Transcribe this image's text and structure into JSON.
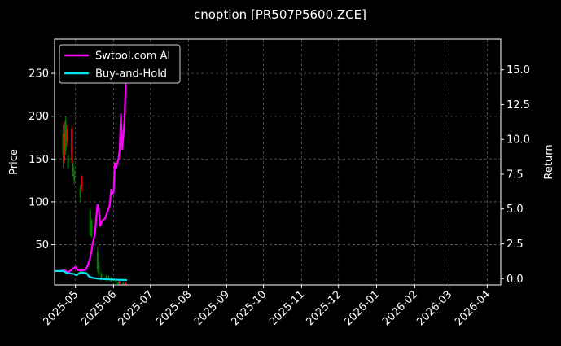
{
  "chart_data": {
    "type": "line",
    "title": "cnoption [PR507P5600.ZCE]",
    "xlabel": "",
    "ylabel": "Price",
    "y2label": "Return",
    "xlim": [
      "2025-04-14",
      "2026-04-12"
    ],
    "ylim": [
      3,
      290
    ],
    "y2lim": [
      -0.45,
      17.2
    ],
    "x_ticks": [
      "2025-05",
      "2025-06",
      "2025-07",
      "2025-08",
      "2025-09",
      "2025-10",
      "2025-11",
      "2025-12",
      "2026-01",
      "2026-02",
      "2026-03",
      "2026-04"
    ],
    "x_tick_dates": [
      "2025-05-01",
      "2025-06-01",
      "2025-07-01",
      "2025-08-01",
      "2025-09-01",
      "2025-10-01",
      "2025-11-01",
      "2025-12-01",
      "2026-01-01",
      "2026-02-01",
      "2026-03-01",
      "2026-04-01"
    ],
    "y_ticks": [
      "50",
      "100",
      "150",
      "200",
      "250"
    ],
    "y_tick_values": [
      50,
      100,
      150,
      200,
      250
    ],
    "y2_ticks": [
      "0.0",
      "2.5",
      "5.0",
      "7.5",
      "10.0",
      "12.5",
      "15.0"
    ],
    "y2_tick_values": [
      0,
      2.5,
      5,
      7.5,
      10,
      12.5,
      15
    ],
    "grid": true,
    "legend_position": "top-left",
    "background": "#000000",
    "up_color": "#008000",
    "down_color": "#ff0000",
    "candles": [
      {
        "date": "2025-04-21",
        "open": 155,
        "high": 190,
        "low": 140,
        "close": 180
      },
      {
        "date": "2025-04-22",
        "open": 180,
        "high": 193,
        "low": 145,
        "close": 148
      },
      {
        "date": "2025-04-23",
        "open": 160,
        "high": 200,
        "low": 155,
        "close": 195
      },
      {
        "date": "2025-04-24",
        "open": 185,
        "high": 190,
        "low": 165,
        "close": 170
      },
      {
        "date": "2025-04-25",
        "open": 140,
        "high": 160,
        "low": 138,
        "close": 155
      },
      {
        "date": "2025-04-28",
        "open": 185,
        "high": 188,
        "low": 145,
        "close": 150
      },
      {
        "date": "2025-04-29",
        "open": 135,
        "high": 150,
        "low": 130,
        "close": 145
      },
      {
        "date": "2025-04-30",
        "open": 125,
        "high": 140,
        "low": 120,
        "close": 135
      },
      {
        "date": "2025-05-05",
        "open": 105,
        "high": 120,
        "low": 100,
        "close": 115
      },
      {
        "date": "2025-05-06",
        "open": 130,
        "high": 131,
        "low": 112,
        "close": 118
      },
      {
        "date": "2025-05-13",
        "open": 62,
        "high": 92,
        "low": 60,
        "close": 90
      },
      {
        "date": "2025-05-14",
        "open": 60,
        "high": 80,
        "low": 58,
        "close": 78
      },
      {
        "date": "2025-05-19",
        "open": 22,
        "high": 48,
        "low": 18,
        "close": 42
      },
      {
        "date": "2025-05-20",
        "open": 15,
        "high": 30,
        "low": 12,
        "close": 25
      },
      {
        "date": "2025-05-22",
        "open": 10,
        "high": 18,
        "low": 8,
        "close": 15
      },
      {
        "date": "2025-05-26",
        "open": 9,
        "high": 15,
        "low": 7,
        "close": 12
      },
      {
        "date": "2025-05-28",
        "open": 9,
        "high": 14,
        "low": 8,
        "close": 13
      },
      {
        "date": "2025-05-30",
        "open": 7,
        "high": 12,
        "low": 6,
        "close": 10
      },
      {
        "date": "2025-06-03",
        "open": 5,
        "high": 10,
        "low": 4,
        "close": 8
      },
      {
        "date": "2025-06-05",
        "open": 4,
        "high": 8,
        "low": 3,
        "close": 6
      },
      {
        "date": "2025-06-06",
        "open": 7,
        "high": 8,
        "low": 4,
        "close": 5
      },
      {
        "date": "2025-06-09",
        "open": 3,
        "high": 6,
        "low": 3,
        "close": 5
      },
      {
        "date": "2025-06-11",
        "open": 5,
        "high": 6,
        "low": 3,
        "close": 4
      }
    ],
    "series": [
      {
        "name": "Swtool.com AI",
        "color": "#ff00ff",
        "axis": "right",
        "points": [
          [
            "2025-04-14",
            0.55
          ],
          [
            "2025-04-19",
            0.55
          ],
          [
            "2025-04-22",
            0.6
          ],
          [
            "2025-04-25",
            0.45
          ],
          [
            "2025-04-28",
            0.65
          ],
          [
            "2025-05-01",
            0.85
          ],
          [
            "2025-05-03",
            0.6
          ],
          [
            "2025-05-06",
            0.6
          ],
          [
            "2025-05-09",
            0.6
          ],
          [
            "2025-05-11",
            0.95
          ],
          [
            "2025-05-13",
            1.5
          ],
          [
            "2025-05-15",
            2.5
          ],
          [
            "2025-05-17",
            3.3
          ],
          [
            "2025-05-18",
            4.5
          ],
          [
            "2025-05-19",
            5.3
          ],
          [
            "2025-05-20",
            5.0
          ],
          [
            "2025-05-21",
            3.8
          ],
          [
            "2025-05-23",
            4.2
          ],
          [
            "2025-05-25",
            4.3
          ],
          [
            "2025-05-27",
            4.8
          ],
          [
            "2025-05-29",
            5.3
          ],
          [
            "2025-05-30",
            6.4
          ],
          [
            "2025-05-31",
            6.1
          ],
          [
            "2025-06-01",
            6.2
          ],
          [
            "2025-06-02",
            8.3
          ],
          [
            "2025-06-03",
            7.9
          ],
          [
            "2025-06-05",
            8.6
          ],
          [
            "2025-06-06",
            9.3
          ],
          [
            "2025-06-07",
            11.8
          ],
          [
            "2025-06-08",
            9.3
          ],
          [
            "2025-06-09",
            10.3
          ],
          [
            "2025-06-10",
            11.5
          ],
          [
            "2025-06-11",
            14.5
          ],
          [
            "2025-06-12",
            15.3
          ]
        ]
      },
      {
        "name": "Buy-and-Hold",
        "color": "#00e5ee",
        "axis": "right",
        "points": [
          [
            "2025-04-14",
            0.55
          ],
          [
            "2025-04-21",
            0.55
          ],
          [
            "2025-04-24",
            0.4
          ],
          [
            "2025-04-29",
            0.35
          ],
          [
            "2025-05-02",
            0.25
          ],
          [
            "2025-05-05",
            0.45
          ],
          [
            "2025-05-10",
            0.4
          ],
          [
            "2025-05-12",
            0.15
          ],
          [
            "2025-05-15",
            0.05
          ],
          [
            "2025-05-19",
            0.0
          ],
          [
            "2025-05-28",
            -0.05
          ],
          [
            "2025-06-05",
            -0.08
          ],
          [
            "2025-06-12",
            -0.1
          ]
        ]
      }
    ]
  }
}
